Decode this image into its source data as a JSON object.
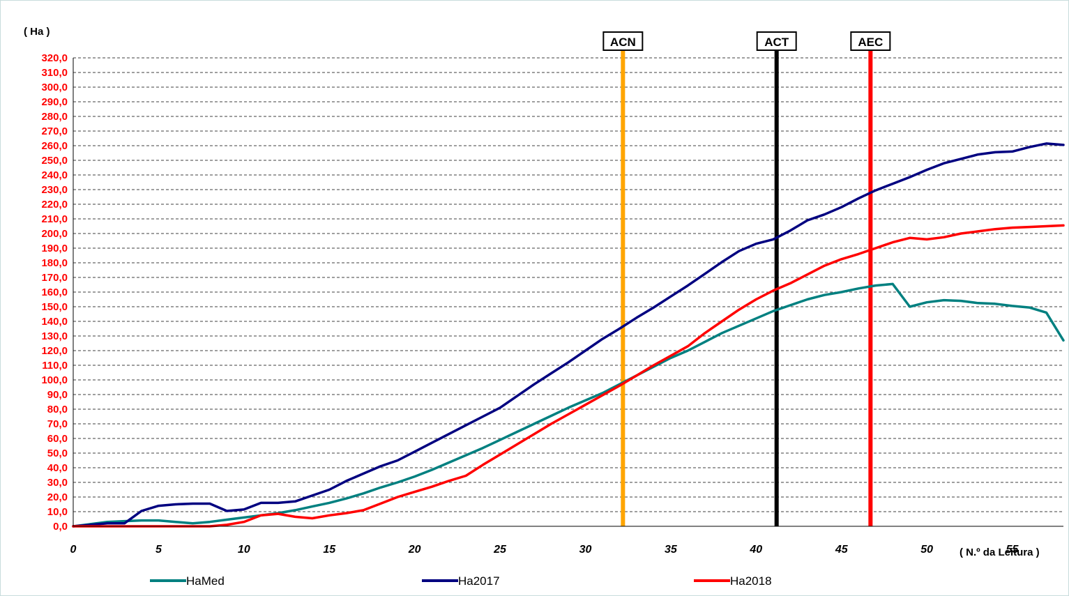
{
  "chart_data": {
    "type": "line",
    "ylabel": "( Ha )",
    "xlabel": "( N.º da Leitura )",
    "xlim": [
      0,
      58
    ],
    "ylim": [
      0,
      320
    ],
    "x_ticks": [
      "0",
      "5",
      "10",
      "15",
      "20",
      "25",
      "30",
      "35",
      "40",
      "45",
      "50",
      "55"
    ],
    "x_tick_values": [
      0,
      5,
      10,
      15,
      20,
      25,
      30,
      35,
      40,
      45,
      50,
      55
    ],
    "y_ticks": [
      "0,0",
      "10,0",
      "20,0",
      "30,0",
      "40,0",
      "50,0",
      "60,0",
      "70,0",
      "80,0",
      "90,0",
      "100,0",
      "110,0",
      "120,0",
      "130,0",
      "140,0",
      "150,0",
      "160,0",
      "170,0",
      "180,0",
      "190,0",
      "200,0",
      "210,0",
      "220,0",
      "230,0",
      "240,0",
      "250,0",
      "260,0",
      "270,0",
      "280,0",
      "290,0",
      "300,0",
      "310,0",
      "320,0"
    ],
    "y_tick_values": [
      0,
      10,
      20,
      30,
      40,
      50,
      60,
      70,
      80,
      90,
      100,
      110,
      120,
      130,
      140,
      150,
      160,
      170,
      180,
      190,
      200,
      210,
      220,
      230,
      240,
      250,
      260,
      270,
      280,
      290,
      300,
      310,
      320
    ],
    "grid": "horizontal dashed",
    "legend_position": "bottom",
    "series": [
      {
        "name": "HaMed",
        "color": "#008080",
        "x": [
          0,
          1,
          2,
          3,
          4,
          5,
          6,
          7,
          8,
          9,
          10,
          11,
          12,
          13,
          14,
          15,
          16,
          17,
          18,
          19,
          20,
          21,
          22,
          23,
          24,
          25,
          26,
          27,
          28,
          29,
          30,
          31,
          32,
          33,
          34,
          35,
          36,
          37,
          38,
          39,
          40,
          41,
          42,
          43,
          44,
          45,
          46,
          47,
          48,
          49,
          50,
          51,
          52,
          53,
          54,
          55,
          56,
          57,
          58
        ],
        "values": [
          0,
          1.5,
          3,
          3.5,
          4,
          4,
          3,
          2,
          3,
          4.5,
          6,
          7.5,
          9,
          11,
          13.5,
          16,
          19,
          22.5,
          26.5,
          30,
          34,
          38.5,
          43.5,
          48.5,
          53.5,
          59,
          64.5,
          70,
          75.5,
          81,
          86,
          91,
          97,
          103,
          109,
          115,
          120,
          126,
          132,
          137,
          142,
          147,
          151,
          155,
          158,
          160,
          162.5,
          164.5,
          165.5,
          150,
          153,
          154.5,
          154,
          152.5,
          152,
          150.5,
          149.5,
          146,
          127
        ]
      },
      {
        "name": "Ha2017",
        "color": "#000080",
        "x": [
          0,
          1,
          2,
          3,
          4,
          5,
          6,
          7,
          8,
          9,
          10,
          11,
          12,
          13,
          14,
          15,
          16,
          17,
          18,
          19,
          20,
          21,
          22,
          23,
          24,
          25,
          26,
          27,
          28,
          29,
          30,
          31,
          32,
          33,
          34,
          35,
          36,
          37,
          38,
          39,
          40,
          41,
          42,
          43,
          44,
          45,
          46,
          47,
          48,
          49,
          50,
          51,
          52,
          53,
          54,
          55,
          56,
          57,
          58
        ],
        "values": [
          0,
          1,
          2,
          2,
          10.5,
          14,
          15,
          15.5,
          15.5,
          10.5,
          11.5,
          16,
          16,
          17,
          21,
          25,
          31,
          36,
          41,
          45,
          51,
          57,
          63,
          69,
          75,
          81,
          89,
          97,
          104.5,
          112,
          120,
          128,
          135,
          142.5,
          149.5,
          157,
          164.5,
          172.5,
          180.5,
          188,
          193,
          196,
          202,
          209,
          213,
          218,
          224,
          229.5,
          234,
          238.5,
          243.5,
          248,
          251,
          254,
          255.5,
          256,
          259,
          261.5,
          260.5
        ]
      },
      {
        "name": "Ha2018",
        "color": "#ff0000",
        "x": [
          0,
          1,
          2,
          3,
          4,
          5,
          6,
          7,
          8,
          9,
          10,
          11,
          12,
          13,
          14,
          15,
          16,
          17,
          18,
          19,
          20,
          21,
          22,
          23,
          24,
          25,
          26,
          27,
          28,
          29,
          30,
          31,
          32,
          33,
          34,
          35,
          36,
          37,
          38,
          39,
          40,
          41,
          42,
          43,
          44,
          45,
          46,
          47,
          48,
          49,
          50,
          51,
          52,
          53,
          54,
          55,
          56,
          57,
          58
        ],
        "values": [
          0,
          0,
          0,
          0,
          0,
          0,
          0,
          0,
          0,
          1,
          3,
          7.5,
          8.5,
          6.5,
          5.5,
          7.5,
          9,
          11,
          15.5,
          20,
          23.5,
          27,
          31,
          34.5,
          42,
          49,
          56,
          63,
          70,
          76.5,
          83,
          89.5,
          96,
          103,
          110,
          116.5,
          123,
          132,
          140,
          148,
          155,
          161,
          166,
          172,
          178,
          182.5,
          186,
          190,
          194,
          197,
          196,
          197.5,
          200,
          201.5,
          203,
          204,
          204.5,
          205,
          205.5
        ]
      }
    ],
    "markers": [
      {
        "label": "ACN",
        "x": 32.2,
        "color": "#ffa500"
      },
      {
        "label": "ACT",
        "x": 41.2,
        "color": "#000000"
      },
      {
        "label": "AEC",
        "x": 46.7,
        "color": "#ff0000"
      }
    ]
  }
}
